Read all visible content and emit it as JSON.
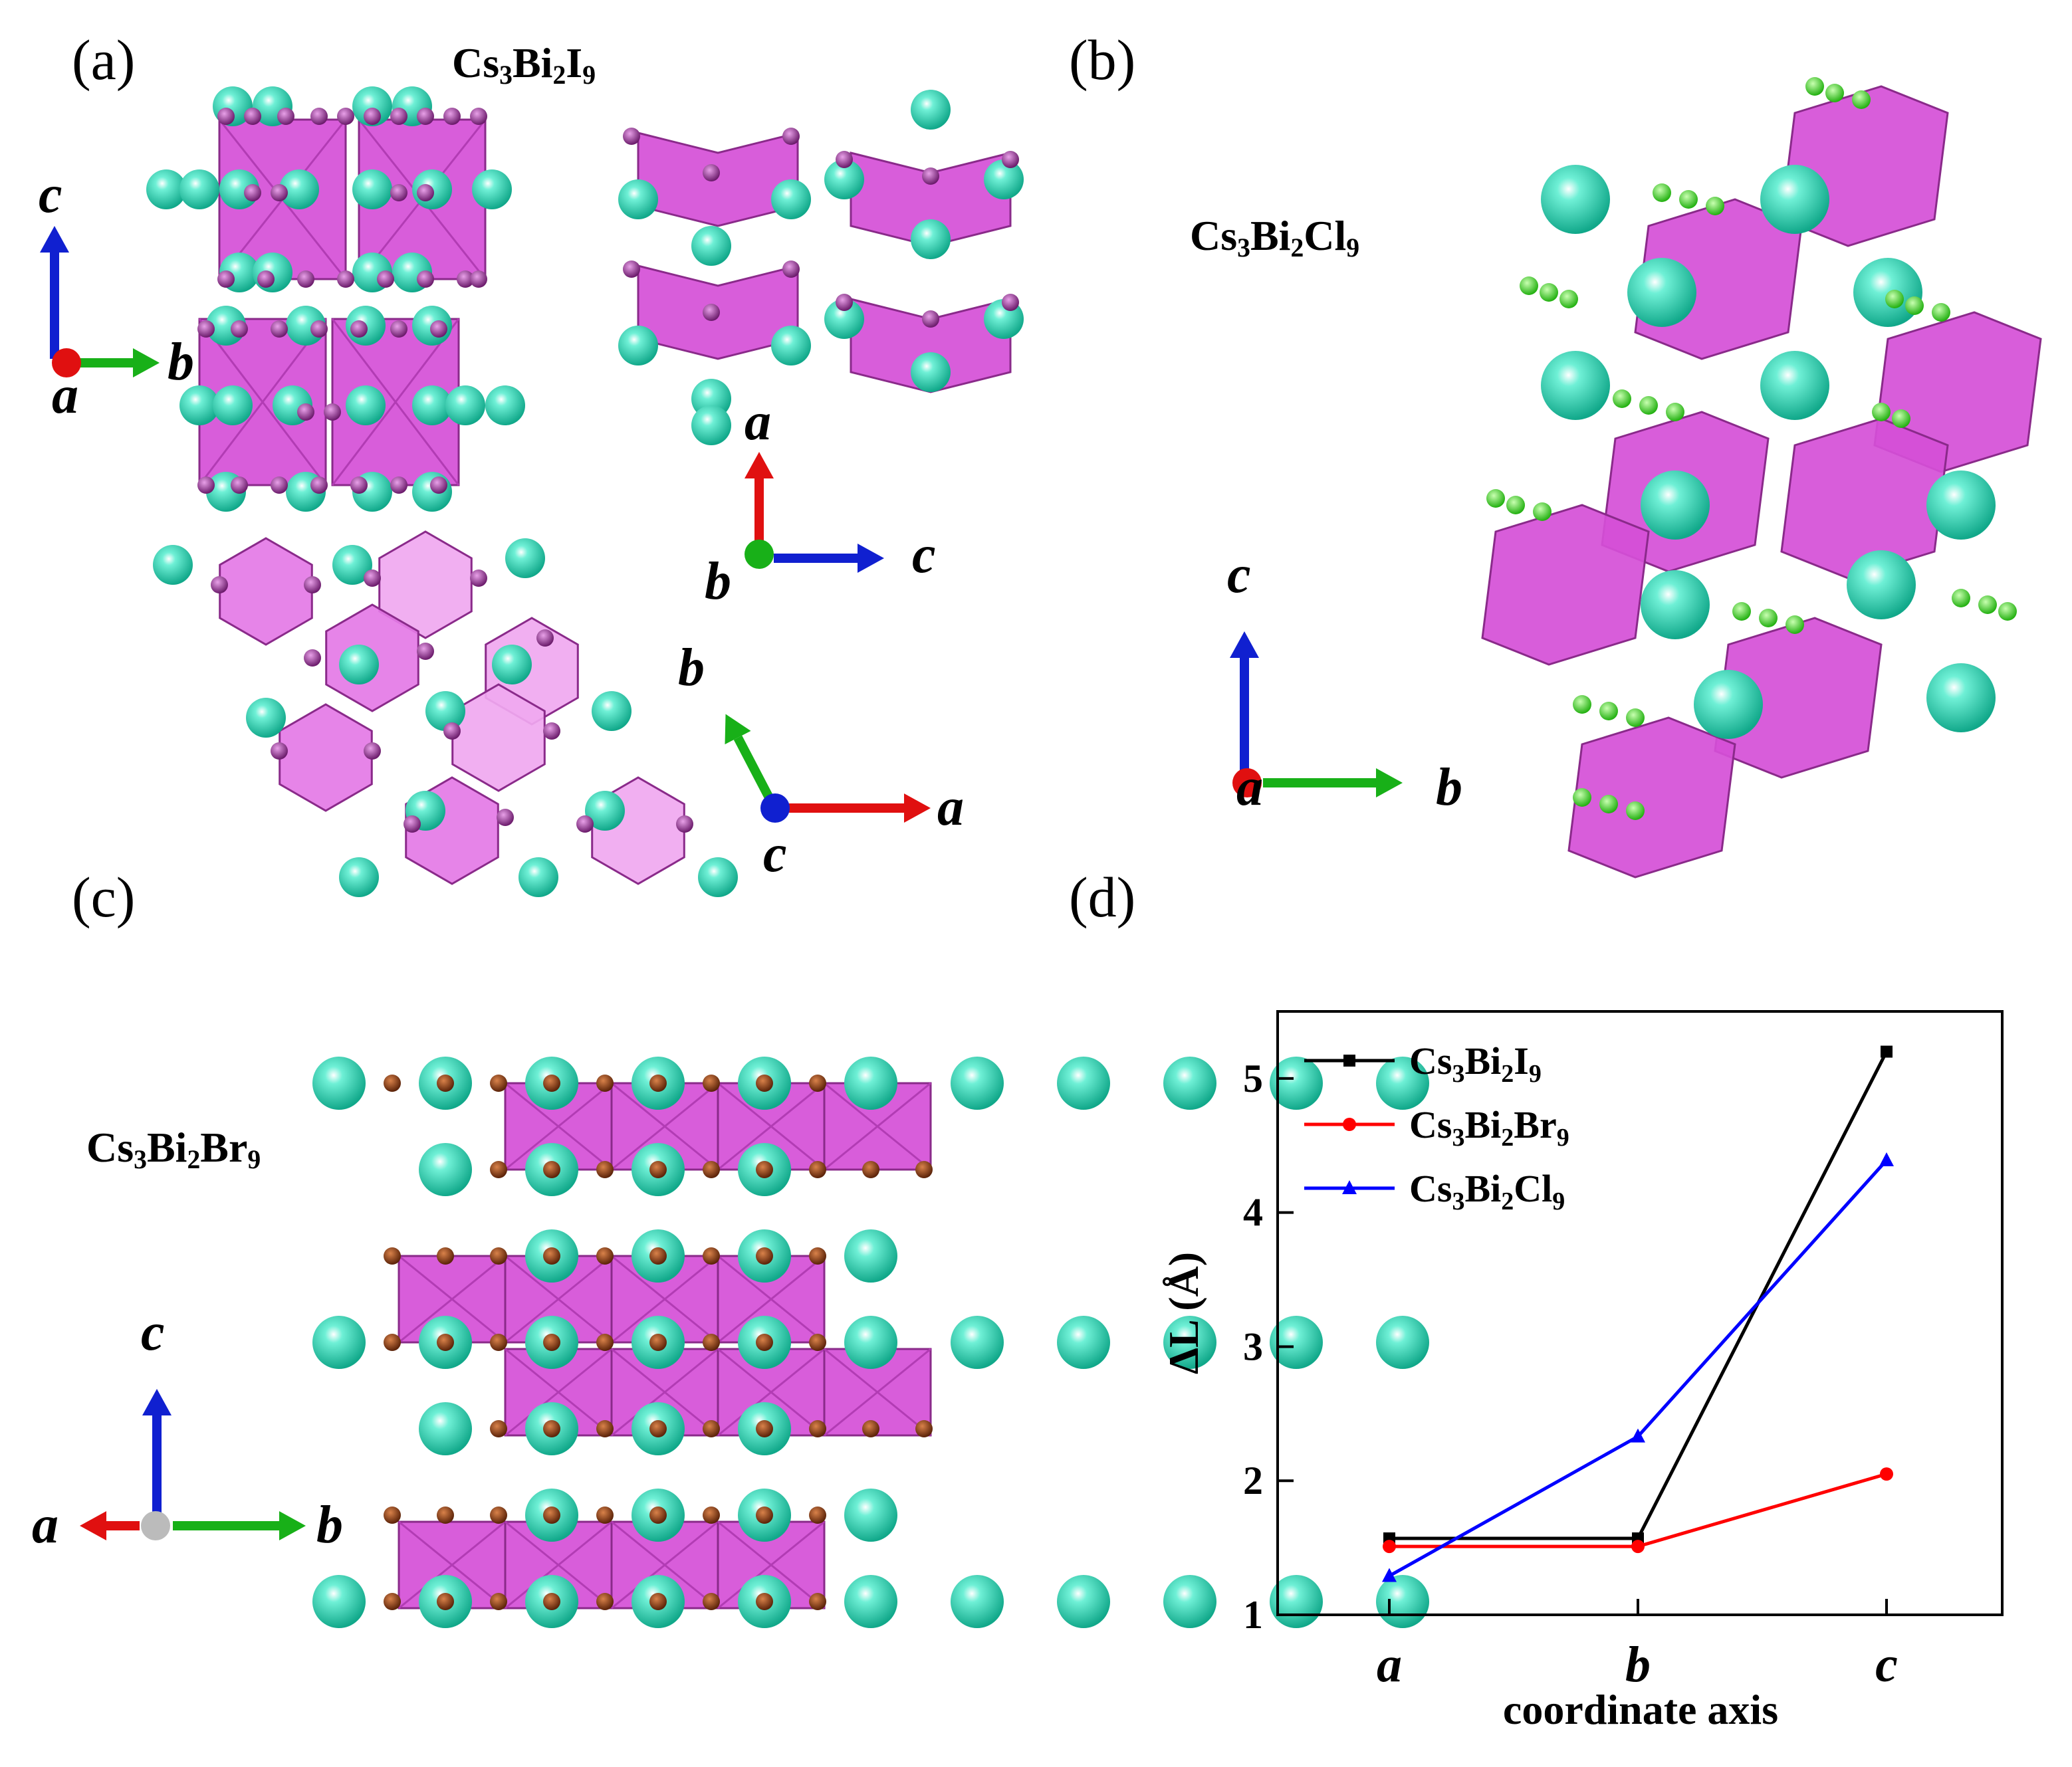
{
  "panels": {
    "a": "(a)",
    "b": "(b)",
    "c": "(c)",
    "d": "(d)"
  },
  "formulas": {
    "iodide": {
      "base1": "Cs",
      "s1": "3",
      "base2": "Bi",
      "s2": "2",
      "base3": "I",
      "s3": "9"
    },
    "chloride": {
      "base1": "Cs",
      "s1": "3",
      "base2": "Bi",
      "s2": "2",
      "base3": "Cl",
      "s3": "9"
    },
    "bromide": {
      "base1": "Cs",
      "s1": "3",
      "base2": "Bi",
      "s2": "2",
      "base3": "Br",
      "s3": "9"
    }
  },
  "axis_letters": {
    "a": "a",
    "b": "b",
    "c": "c"
  },
  "colors": {
    "cs_atom": "#2fd8b6",
    "octahedron": "#d54fd7",
    "iodine": "#8a2a8a",
    "chlorine": "#3fe02a",
    "bromine": "#8b3a10",
    "axis_a": "#e01010",
    "axis_b": "#18b018",
    "axis_c": "#1020d0"
  },
  "chart_data": {
    "type": "line",
    "categories": [
      "a",
      "b",
      "c"
    ],
    "xlabel": "coordinate axis",
    "ylabel": "ΔL (Å)",
    "ylim": [
      1,
      5.5
    ],
    "yticks": [
      "1",
      "2",
      "3",
      "4",
      "5"
    ],
    "legend_position": "top-left",
    "series": [
      {
        "name": "Cs3Bi2I9",
        "name_parts": [
          "Cs",
          "3",
          "Bi",
          "2",
          "I",
          "9"
        ],
        "values": [
          1.57,
          1.57,
          5.2
        ],
        "color": "#000000",
        "marker": "square"
      },
      {
        "name": "Cs3Bi2Br9",
        "name_parts": [
          "Cs",
          "3",
          "Bi",
          "2",
          "Br",
          "9"
        ],
        "values": [
          1.51,
          1.51,
          2.05
        ],
        "color": "#ff0000",
        "marker": "circle"
      },
      {
        "name": "Cs3Bi2Cl9",
        "name_parts": [
          "Cs",
          "3",
          "Bi",
          "2",
          "Cl",
          "9"
        ],
        "values": [
          1.29,
          2.33,
          4.39
        ],
        "color": "#0000ff",
        "marker": "triangle"
      }
    ]
  }
}
